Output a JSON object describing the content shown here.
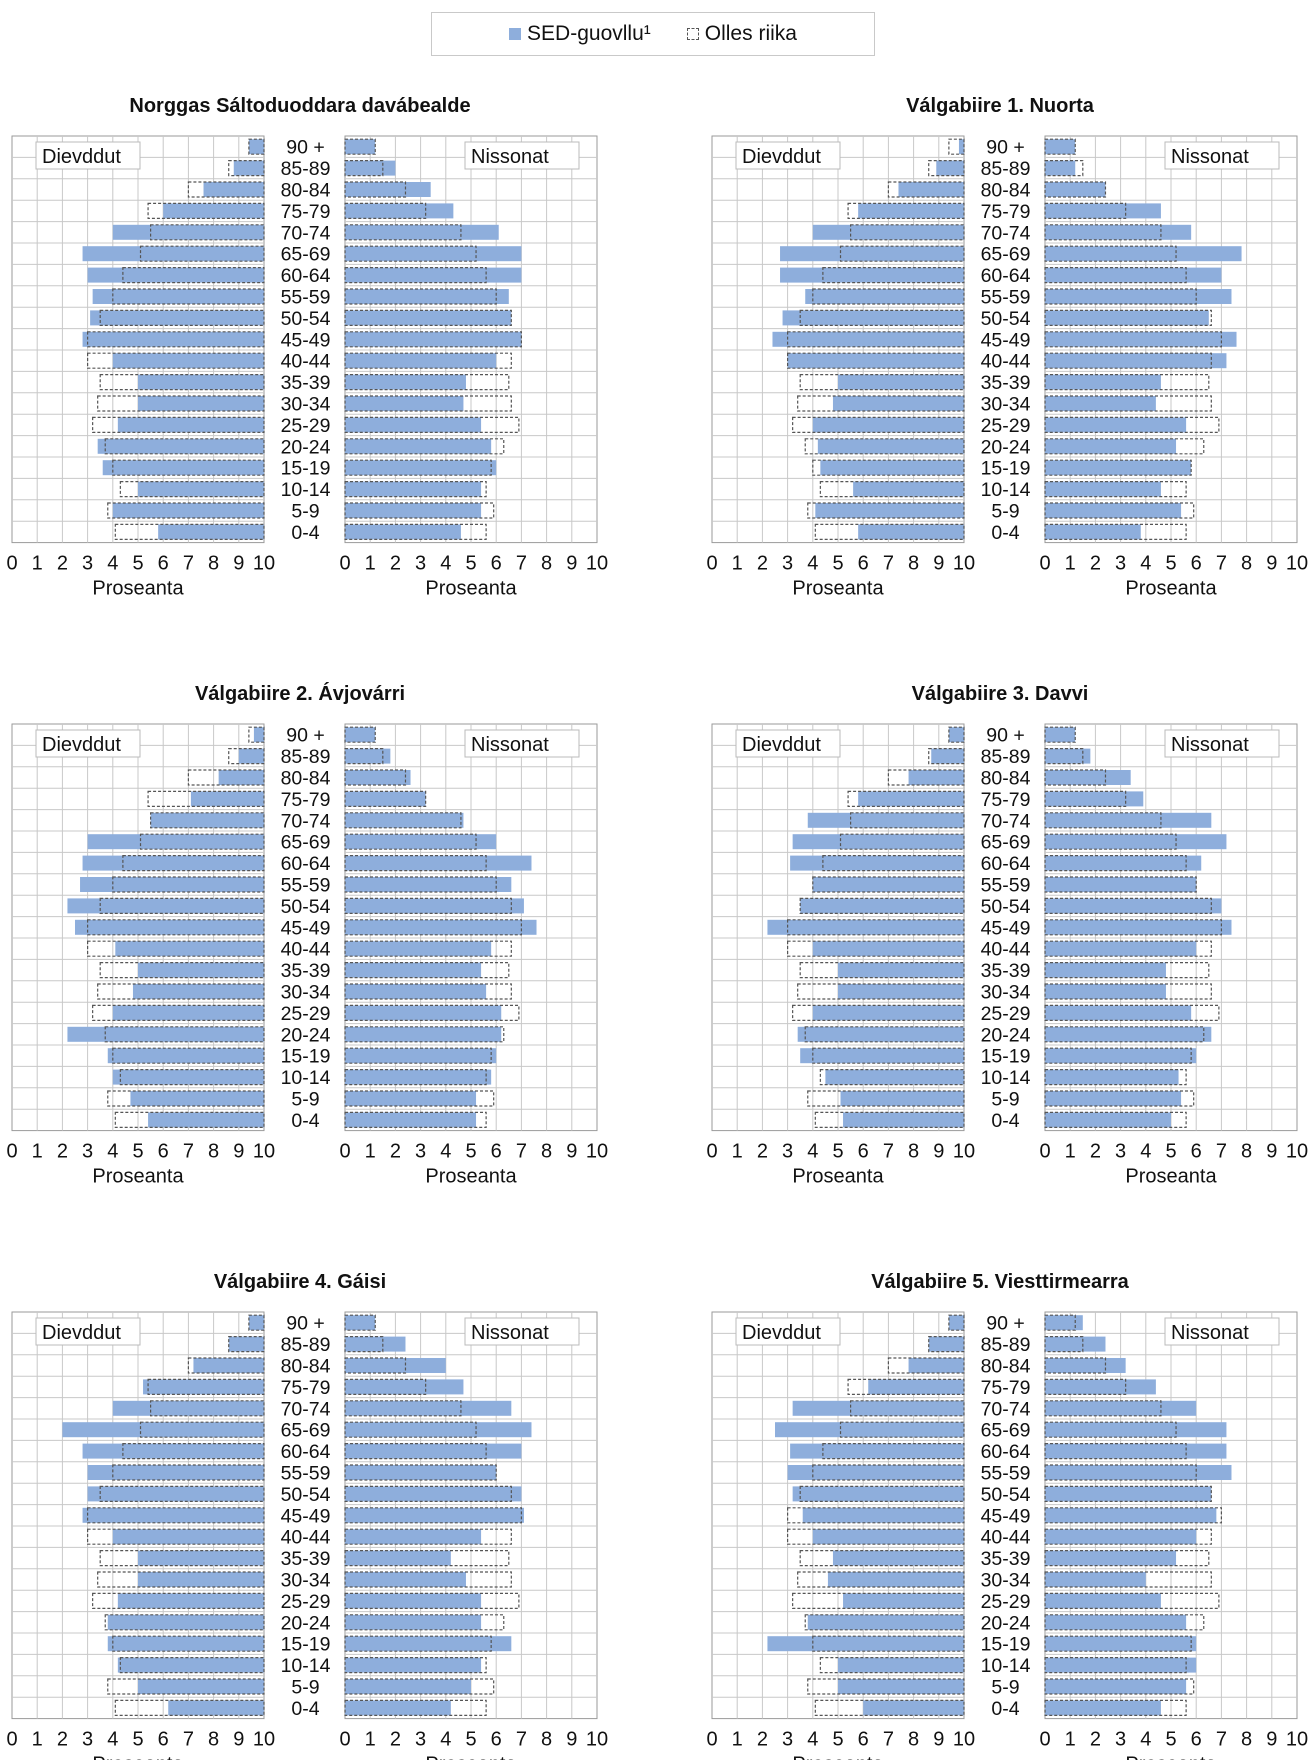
{
  "legend": {
    "sed_label": "SED-guovllu¹",
    "all_label": "Olles riika"
  },
  "colors": {
    "sed": "#8eaedc",
    "all_border": "#555555",
    "grid": "#c8c8c8"
  },
  "chart_data": [
    {
      "type": "bar",
      "title": "Norggas Sáltoduoddara davábealde",
      "left_label": "Dievddut",
      "right_label": "Nissonat",
      "xlabel": "Proseanta",
      "categories": [
        "90 +",
        "85-89",
        "80-84",
        "75-79",
        "70-74",
        "65-69",
        "60-64",
        "55-59",
        "50-54",
        "45-49",
        "40-44",
        "35-39",
        "30-34",
        "25-29",
        "20-24",
        "15-19",
        "10-14",
        "5-9",
        "0-4"
      ],
      "xlim": [
        0,
        10
      ],
      "xticks": [
        "0",
        "1",
        "2",
        "3",
        "4",
        "5",
        "6",
        "7",
        "8",
        "9",
        "10"
      ],
      "series": [
        {
          "name": "SED-guovllu¹",
          "men": [
            0.6,
            1.2,
            2.4,
            4.0,
            6.0,
            7.2,
            7.0,
            6.8,
            6.9,
            7.2,
            6.0,
            5.0,
            5.0,
            5.8,
            6.6,
            6.4,
            5.0,
            6.0,
            4.2
          ],
          "women": [
            1.2,
            2.0,
            3.4,
            4.3,
            6.1,
            7.0,
            7.0,
            6.5,
            6.6,
            7.0,
            6.0,
            4.8,
            4.7,
            5.4,
            5.8,
            6.0,
            5.4,
            5.4,
            4.6
          ]
        },
        {
          "name": "Olles riika",
          "men": [
            0.6,
            1.4,
            3.0,
            4.6,
            4.5,
            4.9,
            5.6,
            6.0,
            6.5,
            7.0,
            7.0,
            6.5,
            6.6,
            6.8,
            6.3,
            6.0,
            5.7,
            6.2,
            5.9
          ],
          "women": [
            1.2,
            1.5,
            2.4,
            3.2,
            4.6,
            5.2,
            5.6,
            6.0,
            6.6,
            7.0,
            6.6,
            6.5,
            6.6,
            6.9,
            6.3,
            5.8,
            5.6,
            5.9,
            5.6
          ]
        }
      ]
    },
    {
      "type": "bar",
      "title": "Válgabiire 1. Nuorta",
      "left_label": "Dievddut",
      "right_label": "Nissonat",
      "xlabel": "Proseanta",
      "categories": [
        "90 +",
        "85-89",
        "80-84",
        "75-79",
        "70-74",
        "65-69",
        "60-64",
        "55-59",
        "50-54",
        "45-49",
        "40-44",
        "35-39",
        "30-34",
        "25-29",
        "20-24",
        "15-19",
        "10-14",
        "5-9",
        "0-4"
      ],
      "xlim": [
        0,
        10
      ],
      "xticks": [
        "0",
        "1",
        "2",
        "3",
        "4",
        "5",
        "6",
        "7",
        "8",
        "9",
        "10"
      ],
      "series": [
        {
          "name": "SED-guovllu¹",
          "men": [
            0.2,
            1.1,
            2.6,
            4.2,
            6.0,
            7.3,
            7.3,
            6.3,
            7.2,
            7.6,
            7.0,
            5.0,
            5.2,
            6.0,
            5.8,
            5.7,
            4.4,
            5.9,
            4.2
          ],
          "women": [
            1.2,
            1.2,
            2.4,
            4.6,
            5.8,
            7.8,
            7.0,
            7.4,
            6.5,
            7.6,
            7.2,
            4.6,
            4.4,
            5.6,
            5.2,
            5.8,
            4.6,
            5.4,
            3.8
          ]
        },
        {
          "name": "Olles riika",
          "men": [
            0.6,
            1.4,
            3.0,
            4.6,
            4.5,
            4.9,
            5.6,
            6.0,
            6.5,
            7.0,
            7.0,
            6.5,
            6.6,
            6.8,
            6.3,
            6.0,
            5.7,
            6.2,
            5.9
          ],
          "women": [
            1.2,
            1.5,
            2.4,
            3.2,
            4.6,
            5.2,
            5.6,
            6.0,
            6.6,
            7.0,
            6.6,
            6.5,
            6.6,
            6.9,
            6.3,
            5.8,
            5.6,
            5.9,
            5.6
          ]
        }
      ]
    },
    {
      "type": "bar",
      "title": "Válgabiire 2. Ávjovárri",
      "left_label": "Dievddut",
      "right_label": "Nissonat",
      "xlabel": "Proseanta",
      "categories": [
        "90 +",
        "85-89",
        "80-84",
        "75-79",
        "70-74",
        "65-69",
        "60-64",
        "55-59",
        "50-54",
        "45-49",
        "40-44",
        "35-39",
        "30-34",
        "25-29",
        "20-24",
        "15-19",
        "10-14",
        "5-9",
        "0-4"
      ],
      "xlim": [
        0,
        10
      ],
      "xticks": [
        "0",
        "1",
        "2",
        "3",
        "4",
        "5",
        "6",
        "7",
        "8",
        "9",
        "10"
      ],
      "series": [
        {
          "name": "SED-guovllu¹",
          "men": [
            0.4,
            1.0,
            1.8,
            2.9,
            4.5,
            7.0,
            7.2,
            7.3,
            7.8,
            7.5,
            5.9,
            5.0,
            5.2,
            6.0,
            7.8,
            6.2,
            6.0,
            5.3,
            4.6
          ],
          "women": [
            1.2,
            1.8,
            2.6,
            3.2,
            4.7,
            6.0,
            7.4,
            6.6,
            7.1,
            7.6,
            5.8,
            5.4,
            5.6,
            6.2,
            6.2,
            6.0,
            5.8,
            5.2,
            5.2
          ]
        },
        {
          "name": "Olles riika",
          "men": [
            0.6,
            1.4,
            3.0,
            4.6,
            4.5,
            4.9,
            5.6,
            6.0,
            6.5,
            7.0,
            7.0,
            6.5,
            6.6,
            6.8,
            6.3,
            6.0,
            5.7,
            6.2,
            5.9
          ],
          "women": [
            1.2,
            1.5,
            2.4,
            3.2,
            4.6,
            5.2,
            5.6,
            6.0,
            6.6,
            7.0,
            6.6,
            6.5,
            6.6,
            6.9,
            6.3,
            5.8,
            5.6,
            5.9,
            5.6
          ]
        }
      ]
    },
    {
      "type": "bar",
      "title": "Válgabiire 3. Davvi",
      "left_label": "Dievddut",
      "right_label": "Nissonat",
      "xlabel": "Proseanta",
      "categories": [
        "90 +",
        "85-89",
        "80-84",
        "75-79",
        "70-74",
        "65-69",
        "60-64",
        "55-59",
        "50-54",
        "45-49",
        "40-44",
        "35-39",
        "30-34",
        "25-29",
        "20-24",
        "15-19",
        "10-14",
        "5-9",
        "0-4"
      ],
      "xlim": [
        0,
        10
      ],
      "xticks": [
        "0",
        "1",
        "2",
        "3",
        "4",
        "5",
        "6",
        "7",
        "8",
        "9",
        "10"
      ],
      "series": [
        {
          "name": "SED-guovllu¹",
          "men": [
            0.6,
            1.3,
            2.2,
            4.2,
            6.2,
            6.8,
            6.9,
            6.0,
            6.5,
            7.8,
            6.0,
            5.0,
            5.0,
            6.0,
            6.6,
            6.5,
            5.5,
            4.9,
            4.8
          ],
          "women": [
            1.2,
            1.8,
            3.4,
            3.9,
            6.6,
            7.2,
            6.2,
            6.0,
            7.0,
            7.4,
            6.0,
            4.8,
            4.8,
            5.8,
            6.6,
            6.0,
            5.3,
            5.4,
            5.0
          ]
        },
        {
          "name": "Olles riika",
          "men": [
            0.6,
            1.4,
            3.0,
            4.6,
            4.5,
            4.9,
            5.6,
            6.0,
            6.5,
            7.0,
            7.0,
            6.5,
            6.6,
            6.8,
            6.3,
            6.0,
            5.7,
            6.2,
            5.9
          ],
          "women": [
            1.2,
            1.5,
            2.4,
            3.2,
            4.6,
            5.2,
            5.6,
            6.0,
            6.6,
            7.0,
            6.6,
            6.5,
            6.6,
            6.9,
            6.3,
            5.8,
            5.6,
            5.9,
            5.6
          ]
        }
      ]
    },
    {
      "type": "bar",
      "title": "Válgabiire 4. Gáisi",
      "left_label": "Dievddut",
      "right_label": "Nissonat",
      "xlabel": "Proseanta",
      "categories": [
        "90 +",
        "85-89",
        "80-84",
        "75-79",
        "70-74",
        "65-69",
        "60-64",
        "55-59",
        "50-54",
        "45-49",
        "40-44",
        "35-39",
        "30-34",
        "25-29",
        "20-24",
        "15-19",
        "10-14",
        "5-9",
        "0-4"
      ],
      "xlim": [
        0,
        10
      ],
      "xticks": [
        "0",
        "1",
        "2",
        "3",
        "4",
        "5",
        "6",
        "7",
        "8",
        "9",
        "10"
      ],
      "series": [
        {
          "name": "SED-guovllu¹",
          "men": [
            0.6,
            1.4,
            2.8,
            4.8,
            6.0,
            8.0,
            7.2,
            7.0,
            7.0,
            7.2,
            6.0,
            5.0,
            5.0,
            5.8,
            6.2,
            6.2,
            5.8,
            5.0,
            3.8
          ],
          "women": [
            1.2,
            2.4,
            4.0,
            4.7,
            6.6,
            7.4,
            7.0,
            6.0,
            7.0,
            7.1,
            5.4,
            4.2,
            4.8,
            5.4,
            5.4,
            6.6,
            5.4,
            5.0,
            4.2
          ]
        },
        {
          "name": "Olles riika",
          "men": [
            0.6,
            1.4,
            3.0,
            4.6,
            4.5,
            4.9,
            5.6,
            6.0,
            6.5,
            7.0,
            7.0,
            6.5,
            6.6,
            6.8,
            6.3,
            6.0,
            5.7,
            6.2,
            5.9
          ],
          "women": [
            1.2,
            1.5,
            2.4,
            3.2,
            4.6,
            5.2,
            5.6,
            6.0,
            6.6,
            7.0,
            6.6,
            6.5,
            6.6,
            6.9,
            6.3,
            5.8,
            5.6,
            5.9,
            5.6
          ]
        }
      ]
    },
    {
      "type": "bar",
      "title": "Válgabiire 5. Viesttirmearra",
      "left_label": "Dievddut",
      "right_label": "Nissonat",
      "xlabel": "Proseanta",
      "categories": [
        "90 +",
        "85-89",
        "80-84",
        "75-79",
        "70-74",
        "65-69",
        "60-64",
        "55-59",
        "50-54",
        "45-49",
        "40-44",
        "35-39",
        "30-34",
        "25-29",
        "20-24",
        "15-19",
        "10-14",
        "5-9",
        "0-4"
      ],
      "xlim": [
        0,
        10
      ],
      "xticks": [
        "0",
        "1",
        "2",
        "3",
        "4",
        "5",
        "6",
        "7",
        "8",
        "9",
        "10"
      ],
      "series": [
        {
          "name": "SED-guovllu¹",
          "men": [
            0.6,
            1.4,
            2.2,
            3.8,
            6.8,
            7.5,
            6.9,
            7.0,
            6.8,
            6.4,
            6.0,
            5.2,
            5.4,
            4.8,
            6.2,
            7.8,
            5.0,
            5.0,
            4.0
          ],
          "women": [
            1.5,
            2.4,
            3.2,
            4.4,
            6.0,
            7.2,
            7.2,
            7.4,
            6.6,
            6.8,
            6.0,
            5.2,
            4.0,
            4.6,
            5.6,
            6.0,
            6.0,
            5.6,
            4.6
          ]
        },
        {
          "name": "Olles riika",
          "men": [
            0.6,
            1.4,
            3.0,
            4.6,
            4.5,
            4.9,
            5.6,
            6.0,
            6.5,
            7.0,
            7.0,
            6.5,
            6.6,
            6.8,
            6.3,
            6.0,
            5.7,
            6.2,
            5.9
          ],
          "women": [
            1.2,
            1.5,
            2.4,
            3.2,
            4.6,
            5.2,
            5.6,
            6.0,
            6.6,
            7.0,
            6.6,
            6.5,
            6.6,
            6.9,
            6.3,
            5.8,
            5.6,
            5.9,
            5.6
          ]
        }
      ]
    }
  ]
}
